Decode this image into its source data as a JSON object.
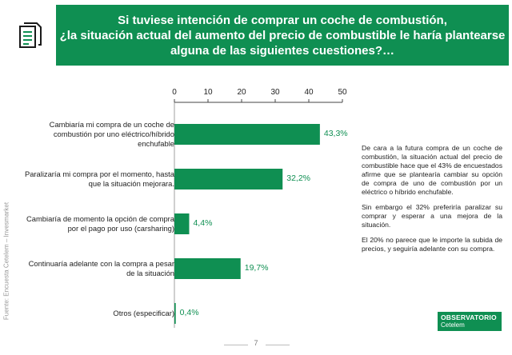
{
  "title": "Si tuviese intención de comprar un coche de combustión,\n¿la situación actual del aumento del precio de combustible le haría plantearse\nalguna de las siguientes cuestiones?…",
  "icons": {
    "document": "document-icon"
  },
  "chart_data": {
    "type": "bar",
    "orientation": "horizontal",
    "categories": [
      "Cambiaría mi compra de un coche de combustión por uno eléctrico/híbrido enchufable",
      "Paralizaría mi compra por el momento, hasta que la situación mejorara.",
      "Cambiaría de momento la opción de compra por el pago por uso (carsharing)",
      "Continuaría adelante con la compra a pesar de la situación",
      "Otros (especificar)"
    ],
    "values": [
      43.3,
      32.2,
      4.4,
      19.7,
      0.4
    ],
    "data_labels": [
      "43,3%",
      "32,2%",
      "4,4%",
      "19,7%",
      "0,4%"
    ],
    "xlim": [
      0,
      50
    ],
    "xticks": [
      "0",
      "10",
      "20",
      "30",
      "40",
      "50"
    ],
    "axis_position": "top",
    "grid": false,
    "bar_color": "#0f8f52"
  },
  "side_note": {
    "paragraphs": [
      "De cara a la futura compra de un coche de combustión, la situación actual del precio de combustible hace que el 43% de encuestados afirme que se plantearía cambiar su opción de compra de uno de combustión por un eléctrico o híbrido enchufable.",
      "Sin embargo el 32% preferiría paralizar su comprar y esperar a una mejora de la situación.",
      "El 20% no parece que le importe la subida de precios, y seguiría adelante con su compra."
    ]
  },
  "source": "Fuente: Encuesta Cetelem – Invesmarket",
  "logo": {
    "top": "OBSERVATORIO",
    "bottom": "Cetelem"
  },
  "page_number": "7",
  "colors": {
    "brand_green": "#0f8f52",
    "text": "#222222"
  }
}
